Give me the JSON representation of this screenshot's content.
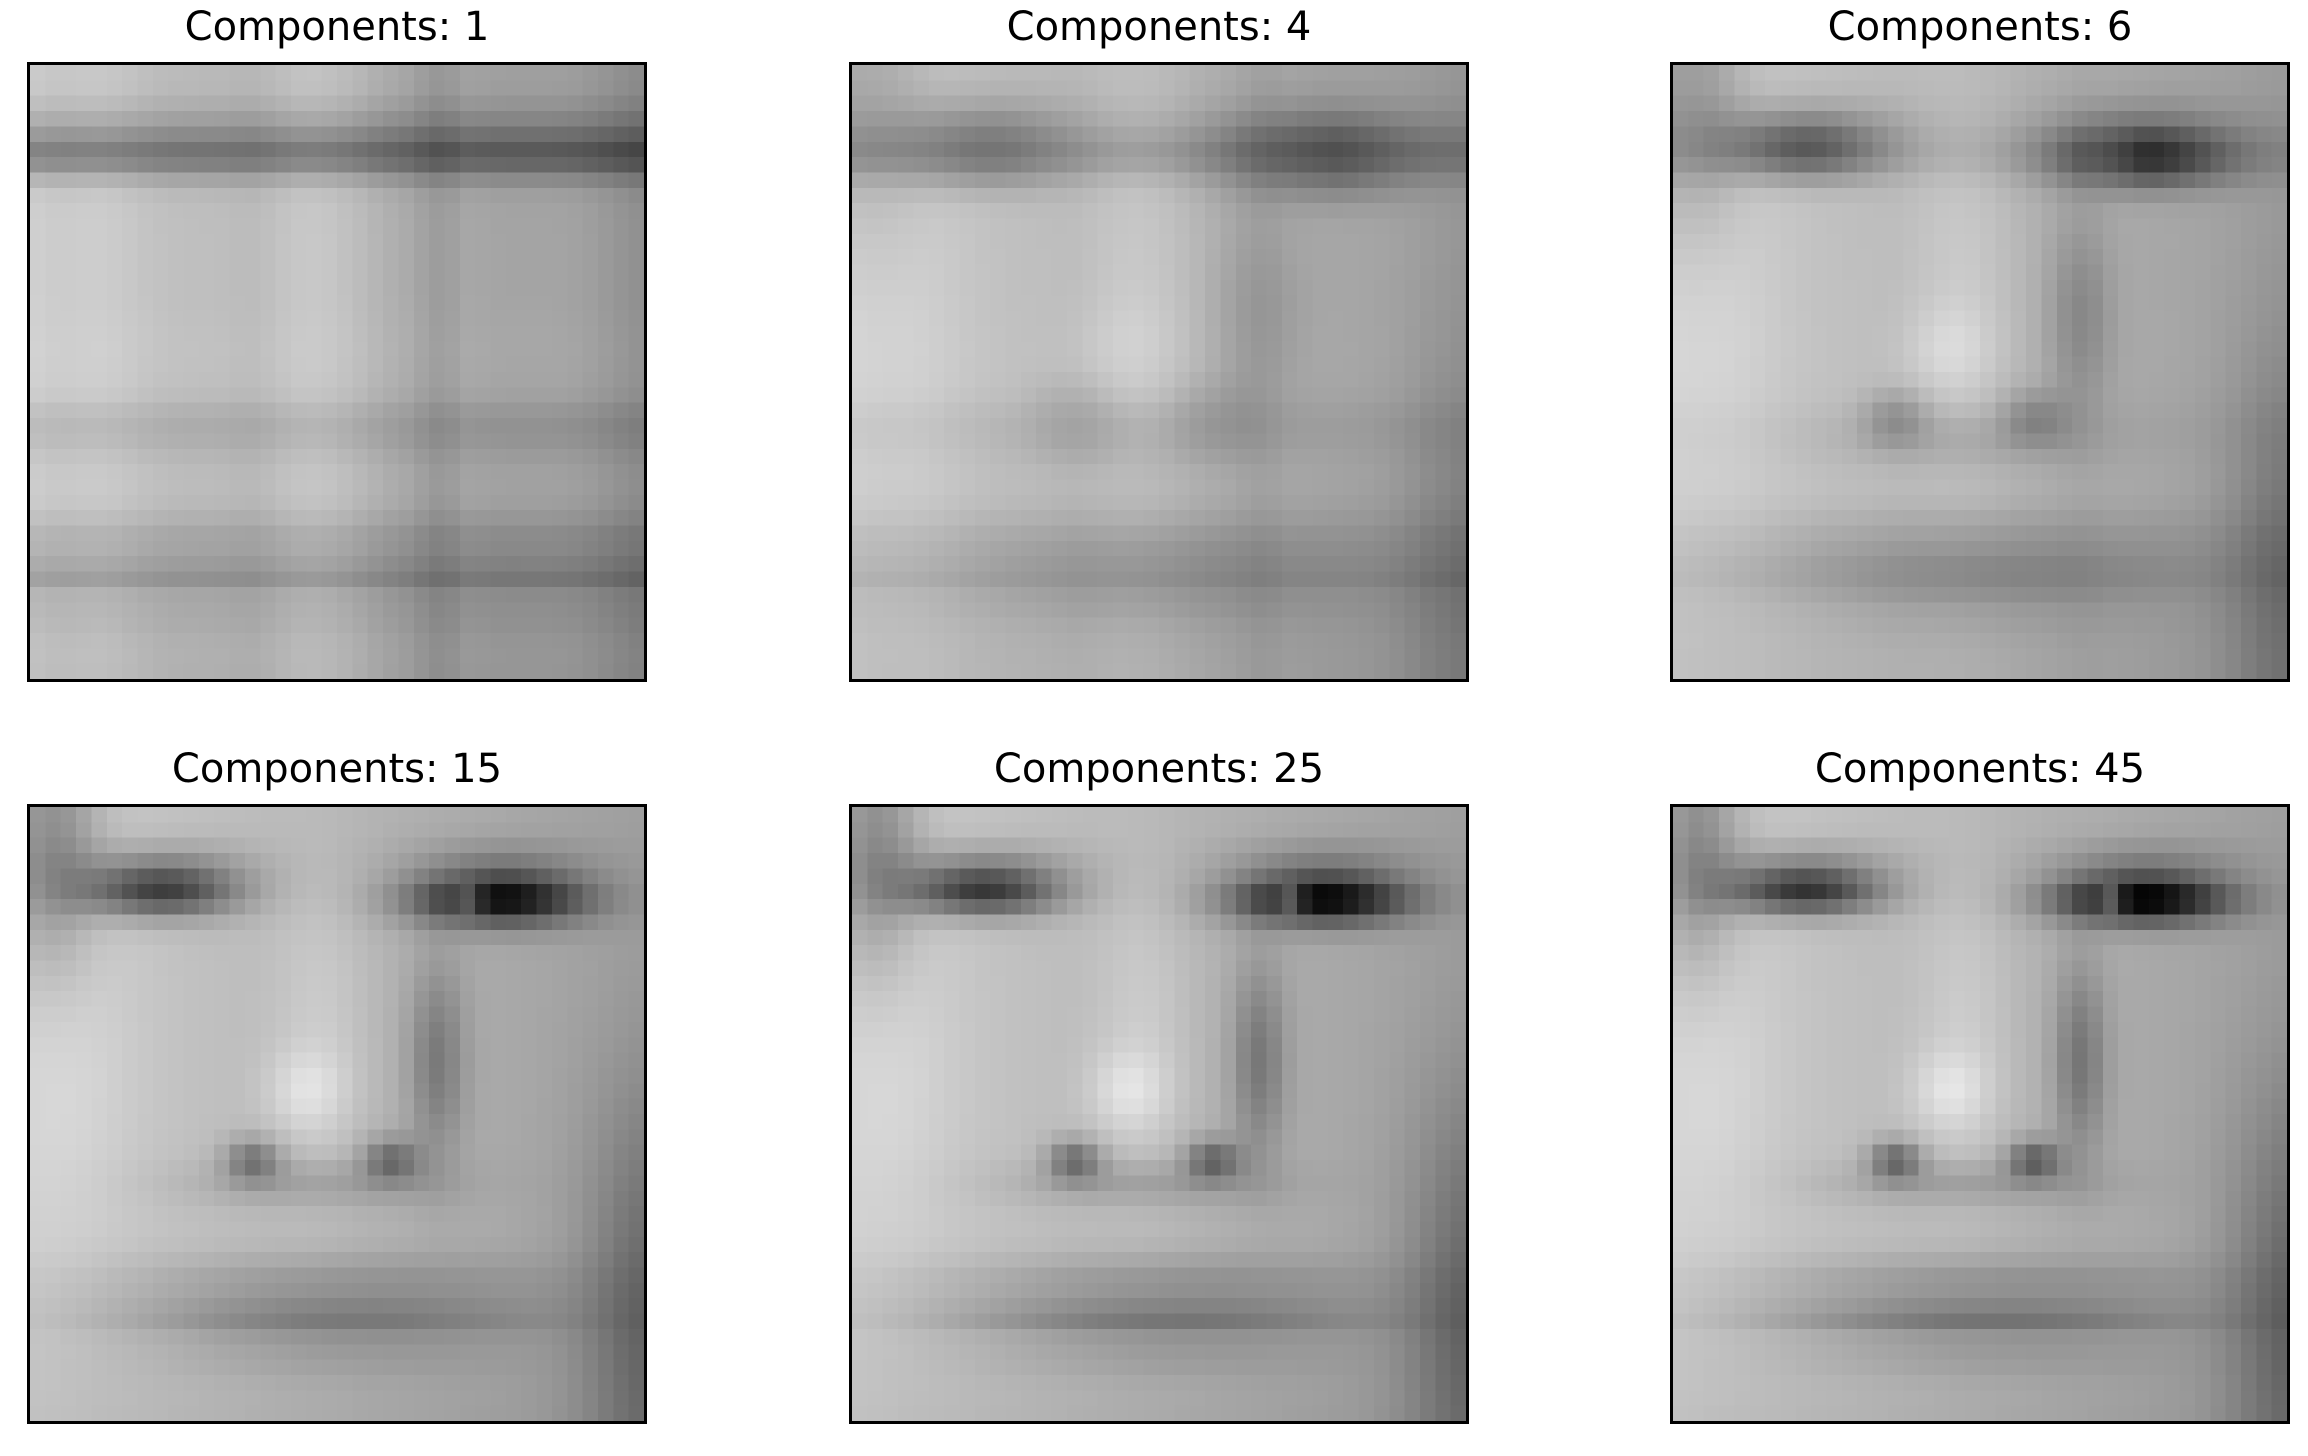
{
  "panels": [
    {
      "title": "Components: 1",
      "image": "face reconstruction (blocky stripes)",
      "level": 1
    },
    {
      "title": "Components: 4",
      "image": "face reconstruction (blurred)",
      "level": 2
    },
    {
      "title": "Components: 6",
      "image": "face reconstruction",
      "level": 3
    },
    {
      "title": "Components: 15",
      "image": "face reconstruction (detailed)",
      "level": 4
    },
    {
      "title": "Components: 25",
      "image": "face reconstruction (detailed)",
      "level": 5
    },
    {
      "title": "Components: 45",
      "image": "face reconstruction (detailed)",
      "level": 6
    }
  ]
}
